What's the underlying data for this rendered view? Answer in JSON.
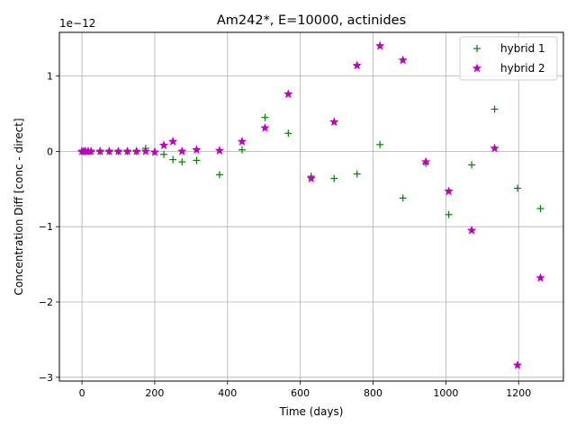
{
  "chart_data": {
    "type": "scatter",
    "title": "Am242*, E=10000, actinides",
    "xlabel": "Time (days)",
    "ylabel": "Concentration Diff [conc - direct]",
    "y_scale_label": "1e−12",
    "xlim": [
      -62,
      1323
    ],
    "ylim": [
      -3.05,
      1.58
    ],
    "x_ticks": [
      0,
      200,
      400,
      600,
      800,
      1000,
      1200
    ],
    "x_tick_labels": [
      "0",
      "200",
      "400",
      "600",
      "800",
      "1000",
      "1200"
    ],
    "y_ticks": [
      -3,
      -2,
      -1,
      0,
      1
    ],
    "y_tick_labels": [
      "−3",
      "−2",
      "−1",
      "0",
      "1"
    ],
    "grid": true,
    "legend_position": "top-right",
    "series": [
      {
        "name": "hybrid 1",
        "marker": "plus",
        "color": "#008000",
        "x": [
          0,
          5,
          10,
          17,
          25,
          50,
          75,
          100,
          125,
          150,
          175,
          200,
          225,
          250,
          275,
          315,
          378,
          440,
          503,
          567,
          630,
          693,
          756,
          819,
          882,
          945,
          1008,
          1071,
          1134,
          1197,
          1260
        ],
        "y": [
          0,
          0,
          0,
          0,
          0,
          0,
          0,
          0,
          0,
          0,
          0.04,
          0,
          -0.04,
          -0.11,
          -0.14,
          -0.12,
          -0.31,
          0.02,
          0.45,
          0.24,
          -0.33,
          -0.36,
          -0.3,
          0.09,
          -0.62,
          -0.16,
          -0.84,
          -0.18,
          0.56,
          -0.49,
          -0.76
        ]
      },
      {
        "name": "hybrid 2",
        "marker": "star",
        "color": "#bf00bf",
        "x": [
          0,
          5,
          10,
          17,
          25,
          50,
          75,
          100,
          125,
          150,
          175,
          200,
          225,
          250,
          275,
          315,
          378,
          440,
          503,
          567,
          630,
          693,
          756,
          819,
          882,
          945,
          1008,
          1071,
          1134,
          1197,
          1260
        ],
        "y": [
          0,
          0,
          0,
          0,
          0,
          0,
          0,
          0,
          0,
          0,
          0,
          -0.01,
          0.08,
          0.13,
          0,
          0.02,
          0.01,
          0.13,
          0.31,
          0.76,
          -0.36,
          0.39,
          1.14,
          1.4,
          1.21,
          -0.14,
          -0.53,
          -1.05,
          0.04,
          -2.84,
          -1.68
        ]
      }
    ]
  }
}
